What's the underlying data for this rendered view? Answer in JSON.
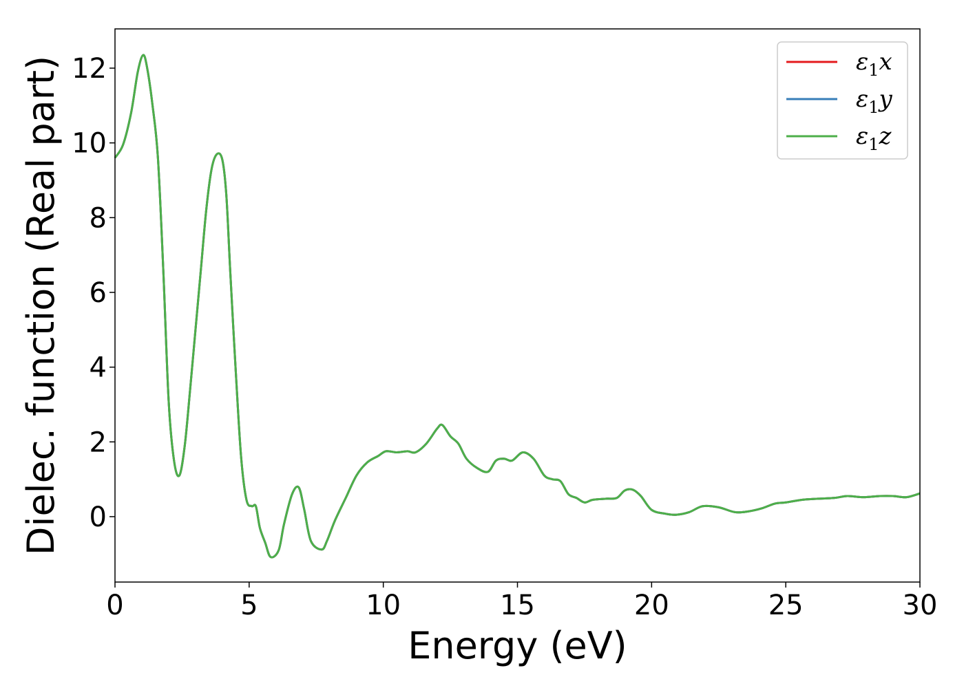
{
  "chart_data": {
    "type": "line",
    "title": "",
    "xlabel": "Energy (eV)",
    "ylabel": "Dielec. function (Real part)",
    "xlim": [
      0,
      30
    ],
    "ylim": [
      -1.75,
      13.05
    ],
    "xticks": [
      "0",
      "5",
      "10",
      "15",
      "20",
      "25",
      "30"
    ],
    "yticks": [
      "0",
      "2",
      "4",
      "6",
      "8",
      "10",
      "12"
    ],
    "grid": false,
    "legend_position": "top-right",
    "series": [
      {
        "name": "ε₁x",
        "label_main": "ε",
        "label_sub": "1",
        "label_var": "x",
        "color": "#e41a1c",
        "x": [
          0,
          0.3,
          0.6,
          0.85,
          1.05,
          1.2,
          1.4,
          1.6,
          1.8,
          2.0,
          2.2,
          2.4,
          2.6,
          2.8,
          3.0,
          3.2,
          3.4,
          3.6,
          3.8,
          4.0,
          4.15,
          4.3,
          4.5,
          4.7,
          4.9,
          5.1,
          5.25,
          5.4,
          5.6,
          5.8,
          6.1,
          6.3,
          6.6,
          6.85,
          7.05,
          7.3,
          7.7,
          7.9,
          8.2,
          8.6,
          9.0,
          9.4,
          9.8,
          10.1,
          10.5,
          10.9,
          11.2,
          11.6,
          12.0,
          12.2,
          12.5,
          12.8,
          13.1,
          13.5,
          13.9,
          14.2,
          14.5,
          14.8,
          15.2,
          15.6,
          16.0,
          16.3,
          16.6,
          16.9,
          17.2,
          17.5,
          17.8,
          18.3,
          18.7,
          19.0,
          19.3,
          19.6,
          20.0,
          20.5,
          20.9,
          21.4,
          21.9,
          22.5,
          23.1,
          23.6,
          24.1,
          24.6,
          25.0,
          25.6,
          26.2,
          26.8,
          27.3,
          27.9,
          28.5,
          29.0,
          29.5,
          30.0
        ],
        "y": [
          9.6,
          9.95,
          10.8,
          11.9,
          12.35,
          12.0,
          11.0,
          9.6,
          6.6,
          3.1,
          1.5,
          1.1,
          1.9,
          3.4,
          5.0,
          6.6,
          8.2,
          9.3,
          9.7,
          9.55,
          8.6,
          6.5,
          3.9,
          1.6,
          0.45,
          0.28,
          0.28,
          -0.3,
          -0.7,
          -1.08,
          -0.9,
          -0.2,
          0.6,
          0.78,
          0.2,
          -0.65,
          -0.88,
          -0.65,
          -0.1,
          0.5,
          1.1,
          1.45,
          1.62,
          1.75,
          1.72,
          1.75,
          1.72,
          1.95,
          2.35,
          2.45,
          2.15,
          1.95,
          1.55,
          1.3,
          1.2,
          1.5,
          1.55,
          1.5,
          1.72,
          1.55,
          1.1,
          1.0,
          0.95,
          0.6,
          0.5,
          0.38,
          0.45,
          0.48,
          0.5,
          0.7,
          0.72,
          0.55,
          0.18,
          0.08,
          0.05,
          0.12,
          0.28,
          0.25,
          0.12,
          0.14,
          0.22,
          0.35,
          0.38,
          0.45,
          0.48,
          0.5,
          0.55,
          0.52,
          0.55,
          0.55,
          0.52,
          0.62
        ]
      },
      {
        "name": "ε₁y",
        "label_main": "ε",
        "label_sub": "1",
        "label_var": "y",
        "color": "#377eb8",
        "x": [
          0,
          0.3,
          0.6,
          0.85,
          1.05,
          1.2,
          1.4,
          1.6,
          1.8,
          2.0,
          2.2,
          2.4,
          2.6,
          2.8,
          3.0,
          3.2,
          3.4,
          3.6,
          3.8,
          4.0,
          4.15,
          4.3,
          4.5,
          4.7,
          4.9,
          5.1,
          5.25,
          5.4,
          5.6,
          5.8,
          6.1,
          6.3,
          6.6,
          6.85,
          7.05,
          7.3,
          7.7,
          7.9,
          8.2,
          8.6,
          9.0,
          9.4,
          9.8,
          10.1,
          10.5,
          10.9,
          11.2,
          11.6,
          12.0,
          12.2,
          12.5,
          12.8,
          13.1,
          13.5,
          13.9,
          14.2,
          14.5,
          14.8,
          15.2,
          15.6,
          16.0,
          16.3,
          16.6,
          16.9,
          17.2,
          17.5,
          17.8,
          18.3,
          18.7,
          19.0,
          19.3,
          19.6,
          20.0,
          20.5,
          20.9,
          21.4,
          21.9,
          22.5,
          23.1,
          23.6,
          24.1,
          24.6,
          25.0,
          25.6,
          26.2,
          26.8,
          27.3,
          27.9,
          28.5,
          29.0,
          29.5,
          30.0
        ],
        "y": [
          9.6,
          9.95,
          10.8,
          11.9,
          12.35,
          12.0,
          11.0,
          9.6,
          6.6,
          3.1,
          1.5,
          1.1,
          1.9,
          3.4,
          5.0,
          6.6,
          8.2,
          9.3,
          9.7,
          9.55,
          8.6,
          6.5,
          3.9,
          1.6,
          0.45,
          0.28,
          0.28,
          -0.3,
          -0.7,
          -1.08,
          -0.9,
          -0.2,
          0.6,
          0.78,
          0.2,
          -0.65,
          -0.88,
          -0.65,
          -0.1,
          0.5,
          1.1,
          1.45,
          1.62,
          1.75,
          1.72,
          1.75,
          1.72,
          1.95,
          2.35,
          2.45,
          2.15,
          1.95,
          1.55,
          1.3,
          1.2,
          1.5,
          1.55,
          1.5,
          1.72,
          1.55,
          1.1,
          1.0,
          0.95,
          0.6,
          0.5,
          0.38,
          0.45,
          0.48,
          0.5,
          0.7,
          0.72,
          0.55,
          0.18,
          0.08,
          0.05,
          0.12,
          0.28,
          0.25,
          0.12,
          0.14,
          0.22,
          0.35,
          0.38,
          0.45,
          0.48,
          0.5,
          0.55,
          0.52,
          0.55,
          0.55,
          0.52,
          0.62
        ]
      },
      {
        "name": "ε₁z",
        "label_main": "ε",
        "label_sub": "1",
        "label_var": "z",
        "color": "#4daf4a",
        "x": [
          0,
          0.3,
          0.6,
          0.85,
          1.05,
          1.2,
          1.4,
          1.6,
          1.8,
          2.0,
          2.2,
          2.4,
          2.6,
          2.8,
          3.0,
          3.2,
          3.4,
          3.6,
          3.8,
          4.0,
          4.15,
          4.3,
          4.5,
          4.7,
          4.9,
          5.1,
          5.25,
          5.4,
          5.6,
          5.8,
          6.1,
          6.3,
          6.6,
          6.85,
          7.05,
          7.3,
          7.7,
          7.9,
          8.2,
          8.6,
          9.0,
          9.4,
          9.8,
          10.1,
          10.5,
          10.9,
          11.2,
          11.6,
          12.0,
          12.2,
          12.5,
          12.8,
          13.1,
          13.5,
          13.9,
          14.2,
          14.5,
          14.8,
          15.2,
          15.6,
          16.0,
          16.3,
          16.6,
          16.9,
          17.2,
          17.5,
          17.8,
          18.3,
          18.7,
          19.0,
          19.3,
          19.6,
          20.0,
          20.5,
          20.9,
          21.4,
          21.9,
          22.5,
          23.1,
          23.6,
          24.1,
          24.6,
          25.0,
          25.6,
          26.2,
          26.8,
          27.3,
          27.9,
          28.5,
          29.0,
          29.5,
          30.0
        ],
        "y": [
          9.6,
          9.95,
          10.8,
          11.9,
          12.35,
          12.0,
          11.0,
          9.6,
          6.6,
          3.1,
          1.5,
          1.1,
          1.9,
          3.4,
          5.0,
          6.6,
          8.2,
          9.3,
          9.7,
          9.55,
          8.6,
          6.5,
          3.9,
          1.6,
          0.45,
          0.28,
          0.28,
          -0.3,
          -0.7,
          -1.08,
          -0.9,
          -0.2,
          0.6,
          0.78,
          0.2,
          -0.65,
          -0.88,
          -0.65,
          -0.1,
          0.5,
          1.1,
          1.45,
          1.62,
          1.75,
          1.72,
          1.75,
          1.72,
          1.95,
          2.35,
          2.45,
          2.15,
          1.95,
          1.55,
          1.3,
          1.2,
          1.5,
          1.55,
          1.5,
          1.72,
          1.55,
          1.1,
          1.0,
          0.95,
          0.6,
          0.5,
          0.38,
          0.45,
          0.48,
          0.5,
          0.7,
          0.72,
          0.55,
          0.18,
          0.08,
          0.05,
          0.12,
          0.28,
          0.25,
          0.12,
          0.14,
          0.22,
          0.35,
          0.38,
          0.45,
          0.48,
          0.5,
          0.55,
          0.52,
          0.55,
          0.55,
          0.52,
          0.62
        ]
      }
    ]
  }
}
